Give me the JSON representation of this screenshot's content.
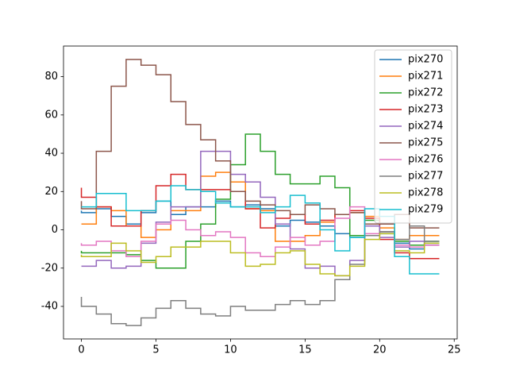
{
  "chart_data": {
    "type": "step",
    "step_where": "pre",
    "x": [
      0,
      1,
      2,
      3,
      4,
      5,
      6,
      7,
      8,
      9,
      10,
      11,
      12,
      13,
      14,
      15,
      16,
      17,
      18,
      19,
      20,
      21,
      22,
      23,
      24
    ],
    "xlim": [
      -1.2,
      25.2
    ],
    "ylim": [
      -57,
      96
    ],
    "xticks": [
      0,
      5,
      10,
      15,
      20,
      25
    ],
    "yticks": [
      -40,
      -20,
      0,
      20,
      40,
      60,
      80
    ],
    "legend": "upper right",
    "series": [
      {
        "name": "pix270",
        "color": "#1f77b4",
        "values": [
          10,
          9,
          11,
          7,
          3,
          9,
          15,
          8,
          12,
          12,
          15,
          12,
          13,
          11,
          2,
          5,
          4,
          2,
          -2,
          -4,
          -3,
          -2,
          -7,
          -10,
          -7
        ]
      },
      {
        "name": "pix271",
        "color": "#ff7f0e",
        "values": [
          3,
          3,
          12,
          10,
          2,
          -4,
          0,
          10,
          10,
          28,
          30,
          25,
          11,
          10,
          -6,
          -6,
          -3,
          4,
          8,
          9,
          7,
          1,
          -5,
          -3,
          -3
        ]
      },
      {
        "name": "pix272",
        "color": "#2ca02c",
        "values": [
          -11,
          -12,
          -12,
          -12,
          -13,
          -16,
          -20,
          -20,
          -6,
          3,
          16,
          34,
          50,
          41,
          29,
          24,
          24,
          28,
          22,
          -3,
          5,
          -1,
          -6,
          -8,
          -6
        ]
      },
      {
        "name": "pix273",
        "color": "#d62728",
        "values": [
          22,
          17,
          12,
          2,
          2,
          10,
          23,
          29,
          21,
          21,
          21,
          20,
          11,
          1,
          6,
          8,
          3,
          5,
          8,
          10,
          6,
          -5,
          -12,
          -15,
          -15
        ]
      },
      {
        "name": "pix274",
        "color": "#9467bd",
        "values": [
          -19,
          -19,
          -16,
          -20,
          -19,
          -7,
          4,
          12,
          12,
          41,
          41,
          29,
          25,
          17,
          3,
          -10,
          -20,
          -19,
          -24,
          -16,
          2,
          -4,
          -9,
          -6,
          -8
        ]
      },
      {
        "name": "pix275",
        "color": "#8c564b",
        "values": [
          15,
          11,
          41,
          75,
          89,
          86,
          81,
          67,
          55,
          47,
          36,
          20,
          15,
          13,
          10,
          8,
          13,
          11,
          8,
          9,
          3,
          3,
          8,
          1,
          1
        ]
      },
      {
        "name": "pix276",
        "color": "#e377c2",
        "values": [
          -7,
          -8,
          -6,
          -11,
          -14,
          -6,
          3,
          5,
          0,
          -3,
          -1,
          -4,
          -12,
          -14,
          -9,
          -4,
          -8,
          -6,
          6,
          12,
          -2,
          -1,
          -8,
          -9,
          -8
        ]
      },
      {
        "name": "pix277",
        "color": "#7f7f7f",
        "values": [
          -35,
          -40,
          -44,
          -49,
          -50,
          -46,
          -41,
          -37,
          -41,
          -44,
          -45,
          -40,
          -42,
          -42,
          -39,
          -37,
          -39,
          -37,
          -26,
          -18,
          -3,
          -1,
          -5,
          2,
          -6
        ]
      },
      {
        "name": "pix278",
        "color": "#bcbd22",
        "values": [
          -13,
          -14,
          -14,
          -7,
          -11,
          -17,
          -14,
          -9,
          -9,
          -6,
          -6,
          -12,
          -19,
          -18,
          -12,
          -11,
          -18,
          -23,
          -24,
          -19,
          -5,
          -2,
          -11,
          -12,
          -7
        ]
      },
      {
        "name": "pix279",
        "color": "#17becf",
        "values": [
          12,
          12,
          19,
          19,
          10,
          10,
          15,
          23,
          21,
          20,
          14,
          12,
          12,
          9,
          12,
          18,
          14,
          0,
          -11,
          -4,
          11,
          7,
          -14,
          -23,
          -23
        ]
      }
    ]
  }
}
